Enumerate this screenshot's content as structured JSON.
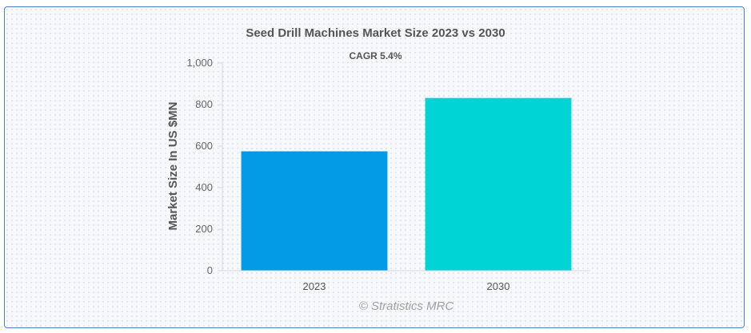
{
  "chart_data": {
    "type": "bar",
    "title": "Seed Drill Machines Market Size 2023 vs 2030",
    "subtitle": "CAGR 5.4%",
    "categories": [
      "2023",
      "2030"
    ],
    "values": [
      575,
      832
    ],
    "colors": [
      "#039be5",
      "#00d4d4"
    ],
    "xlabel": "",
    "ylabel": "Market Size In US $MN",
    "ylim": [
      0,
      1000
    ],
    "yticks": [
      "0",
      "200",
      "400",
      "600",
      "800",
      "1,000"
    ],
    "ytick_values": [
      0,
      200,
      400,
      600,
      800,
      1000
    ],
    "grid": false,
    "legend": "none"
  },
  "credit": "© Stratistics MRC"
}
